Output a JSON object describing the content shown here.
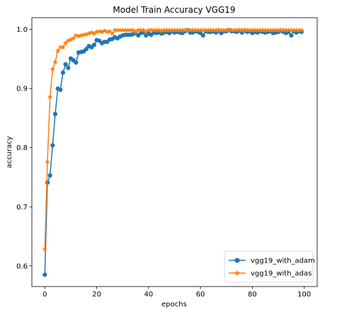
{
  "chart_data": {
    "type": "line",
    "title": "Model Train Accuracy VGG19",
    "xlabel": "epochs",
    "ylabel": "accuracy",
    "xlim": [
      -5,
      105
    ],
    "ylim": [
      0.565,
      1.02
    ],
    "xticks": [
      0,
      20,
      40,
      60,
      80,
      100
    ],
    "yticks": [
      0.6,
      0.7,
      0.8,
      0.9,
      1.0
    ],
    "xtick_labels": [
      "0",
      "20",
      "40",
      "60",
      "80",
      "100"
    ],
    "ytick_labels": [
      "0.6",
      "0.7",
      "0.8",
      "0.9",
      "1.0"
    ],
    "legend_position": "bottom-right",
    "grid": false,
    "x": [
      0,
      1,
      2,
      3,
      4,
      5,
      6,
      7,
      8,
      9,
      10,
      11,
      12,
      13,
      14,
      15,
      16,
      17,
      18,
      19,
      20,
      21,
      22,
      23,
      24,
      25,
      26,
      27,
      28,
      29,
      30,
      31,
      32,
      33,
      34,
      35,
      36,
      37,
      38,
      39,
      40,
      41,
      42,
      43,
      44,
      45,
      46,
      47,
      48,
      49,
      50,
      51,
      52,
      53,
      54,
      55,
      56,
      57,
      58,
      59,
      60,
      61,
      62,
      63,
      64,
      65,
      66,
      67,
      68,
      69,
      70,
      71,
      72,
      73,
      74,
      75,
      76,
      77,
      78,
      79,
      80,
      81,
      82,
      83,
      84,
      85,
      86,
      87,
      88,
      89,
      90,
      91,
      92,
      93,
      94,
      95,
      96,
      97,
      98,
      99
    ],
    "series": [
      {
        "name": "vgg19_with_adam",
        "color": "#1f77b4",
        "marker": "circle",
        "values": [
          0.585,
          0.741,
          0.753,
          0.804,
          0.857,
          0.9,
          0.898,
          0.927,
          0.941,
          0.935,
          0.951,
          0.948,
          0.944,
          0.961,
          0.962,
          0.963,
          0.967,
          0.972,
          0.97,
          0.974,
          0.982,
          0.981,
          0.977,
          0.979,
          0.979,
          0.983,
          0.984,
          0.987,
          0.985,
          0.988,
          0.99,
          0.991,
          0.991,
          0.991,
          0.992,
          0.994,
          0.99,
          0.994,
          0.995,
          0.99,
          0.993,
          0.991,
          0.995,
          0.994,
          0.995,
          0.993,
          0.995,
          0.996,
          0.994,
          0.997,
          0.995,
          0.996,
          0.995,
          0.994,
          0.997,
          0.999,
          0.995,
          0.995,
          0.997,
          0.996,
          0.994,
          0.99,
          0.997,
          0.996,
          0.996,
          0.997,
          0.995,
          0.998,
          0.994,
          0.997,
          0.997,
          0.999,
          0.997,
          0.997,
          0.996,
          0.998,
          0.995,
          0.998,
          0.996,
          0.997,
          0.994,
          0.996,
          0.995,
          0.997,
          0.996,
          0.995,
          0.996,
          0.997,
          0.994,
          0.995,
          0.996,
          0.998,
          0.996,
          0.994,
          0.996,
          0.99,
          0.997,
          0.995,
          0.997,
          0.996
        ]
      },
      {
        "name": "vgg19_with_adas",
        "color": "#ff7f0e",
        "marker": "star",
        "values": [
          0.628,
          0.776,
          0.886,
          0.933,
          0.945,
          0.964,
          0.97,
          0.97,
          0.977,
          0.981,
          0.983,
          0.985,
          0.99,
          0.989,
          0.99,
          0.991,
          0.992,
          0.993,
          0.995,
          0.993,
          0.996,
          0.997,
          0.996,
          0.998,
          0.996,
          0.997,
          0.993,
          0.999,
          0.999,
          0.999,
          0.999,
          0.999,
          0.999,
          0.999,
          0.999,
          0.996,
          0.999,
          0.999,
          0.999,
          0.996,
          0.999,
          0.999,
          0.999,
          0.999,
          0.999,
          0.998,
          0.999,
          0.999,
          0.999,
          0.999,
          0.999,
          0.999,
          0.999,
          0.999,
          0.999,
          0.999,
          0.999,
          0.999,
          0.999,
          0.999,
          0.999,
          0.999,
          0.999,
          0.999,
          0.999,
          0.999,
          0.999,
          0.999,
          0.999,
          0.999,
          0.999,
          0.999,
          0.999,
          0.999,
          0.999,
          0.999,
          0.999,
          0.999,
          0.999,
          0.999,
          0.999,
          0.999,
          0.999,
          0.999,
          0.999,
          0.999,
          0.999,
          0.999,
          0.999,
          0.999,
          0.999,
          0.999,
          0.999,
          0.999,
          0.999,
          0.999,
          0.999,
          0.999,
          0.999,
          0.999
        ]
      }
    ]
  }
}
